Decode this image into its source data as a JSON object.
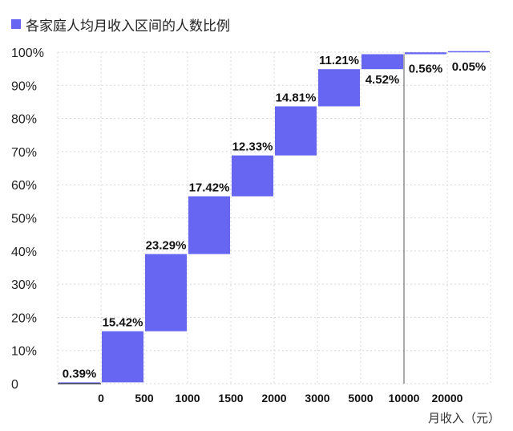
{
  "chart_data": {
    "type": "waterfall",
    "legend": {
      "label": "各家庭人均月收入区间的人数比例",
      "position": "top-left"
    },
    "y_ticks": [
      "0",
      "10%",
      "20%",
      "30%",
      "40%",
      "50%",
      "60%",
      "70%",
      "80%",
      "90%",
      "100%"
    ],
    "ylim": [
      0,
      100
    ],
    "x_tick_labels": [
      "0",
      "500",
      "1000",
      "1500",
      "2000",
      "3000",
      "5000",
      "10000",
      "20000"
    ],
    "xlabel": "月收入（元）",
    "bars": [
      {
        "label": "0.39%",
        "value": 0.39
      },
      {
        "label": "15.42%",
        "value": 15.42
      },
      {
        "label": "23.29%",
        "value": 23.29
      },
      {
        "label": "17.42%",
        "value": 17.42
      },
      {
        "label": "12.33%",
        "value": 12.33
      },
      {
        "label": "14.81%",
        "value": 14.81
      },
      {
        "label": "11.21%",
        "value": 11.21
      },
      {
        "label": "4.52%",
        "value": 4.52
      },
      {
        "label": "0.56%",
        "value": 0.56
      },
      {
        "label": "0.05%",
        "value": 0.05
      }
    ],
    "grid": true,
    "colors": {
      "bar": "#6666f2",
      "grid": "#d8d8d8",
      "text": "#111111"
    }
  }
}
